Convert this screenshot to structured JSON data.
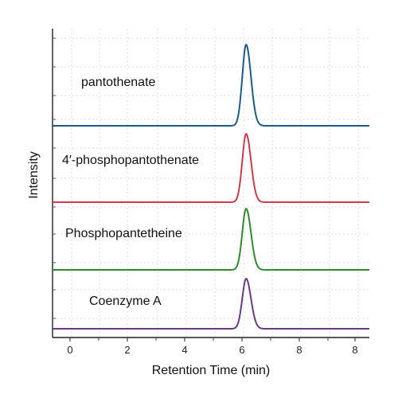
{
  "chart_data": {
    "type": "line",
    "title": "",
    "xlabel": "Retention Time (min)",
    "ylabel": "Intensity",
    "xlim": [
      -0.5,
      8.5
    ],
    "x_tick_labels": [
      "0",
      "2",
      "4",
      "6",
      "8",
      "8"
    ],
    "grid": true,
    "layout": "stacked-traces",
    "series": [
      {
        "name": "pantothenate",
        "color": "#1f5a86",
        "peak_x": 5.0,
        "peak_height": 1.0
      },
      {
        "name": "4′-phosphopantothenate",
        "color": "#cc3b4b",
        "peak_x": 5.0,
        "peak_height": 1.0
      },
      {
        "name": "Phosphopantetheine",
        "color": "#2f8a2f",
        "peak_x": 5.0,
        "peak_height": 1.0
      },
      {
        "name": "Coenzyme A",
        "color": "#6a3a7f",
        "peak_x": 5.0,
        "peak_height": 1.0
      }
    ]
  }
}
